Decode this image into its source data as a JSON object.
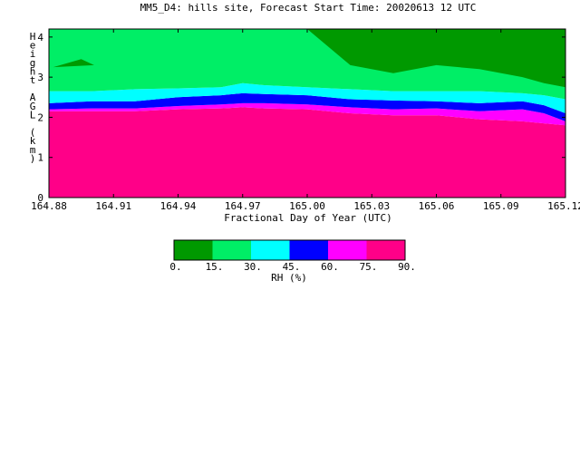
{
  "chart_data": {
    "type": "heatmap",
    "title": "MM5_D4: hills site,  Forecast Start Time: 20020613 12 UTC",
    "xlabel": "Fractional Day of Year (UTC)",
    "ylabel": "Height AGL (km)",
    "xlim": [
      164.88,
      165.12
    ],
    "ylim": [
      0,
      4.2
    ],
    "x_ticks": [
      "164.88",
      "164.91",
      "164.94",
      "164.97",
      "165.00",
      "165.03",
      "165.06",
      "165.09",
      "165.12"
    ],
    "y_ticks": [
      "0",
      "1",
      "2",
      "3",
      "4"
    ],
    "colorbar": {
      "label": "RH (%)",
      "ticks": [
        "0.",
        "15.",
        "30.",
        "45.",
        "60.",
        "75.",
        "90."
      ],
      "levels": [
        0,
        15,
        30,
        45,
        60,
        75,
        90
      ],
      "colors": [
        "#009900",
        "#00ee66",
        "#00ffff",
        "#0000ff",
        "#ff00ff",
        "#ff0088"
      ]
    },
    "contour_boundaries": {
      "x": [
        164.88,
        164.9,
        164.92,
        164.94,
        164.96,
        164.97,
        164.98,
        165.0,
        165.02,
        165.04,
        165.06,
        165.08,
        165.1,
        165.11,
        165.12
      ],
      "rh_75": [
        2.15,
        2.15,
        2.15,
        2.2,
        2.22,
        2.25,
        2.22,
        2.2,
        2.1,
        2.05,
        2.05,
        1.95,
        1.9,
        1.85,
        1.8
      ],
      "rh_60": [
        2.2,
        2.22,
        2.22,
        2.28,
        2.32,
        2.35,
        2.35,
        2.32,
        2.25,
        2.2,
        2.22,
        2.15,
        2.2,
        2.1,
        1.9
      ],
      "rh_45": [
        2.35,
        2.4,
        2.4,
        2.5,
        2.55,
        2.6,
        2.58,
        2.55,
        2.45,
        2.42,
        2.4,
        2.35,
        2.4,
        2.3,
        2.1
      ],
      "rh_30": [
        2.65,
        2.65,
        2.7,
        2.72,
        2.75,
        2.85,
        2.8,
        2.75,
        2.7,
        2.65,
        2.65,
        2.65,
        2.6,
        2.55,
        2.45
      ],
      "rh_15_upper": [
        null,
        null,
        null,
        null,
        null,
        null,
        null,
        4.2,
        3.3,
        3.1,
        3.3,
        3.2,
        3.0,
        2.85,
        2.75
      ]
    }
  }
}
